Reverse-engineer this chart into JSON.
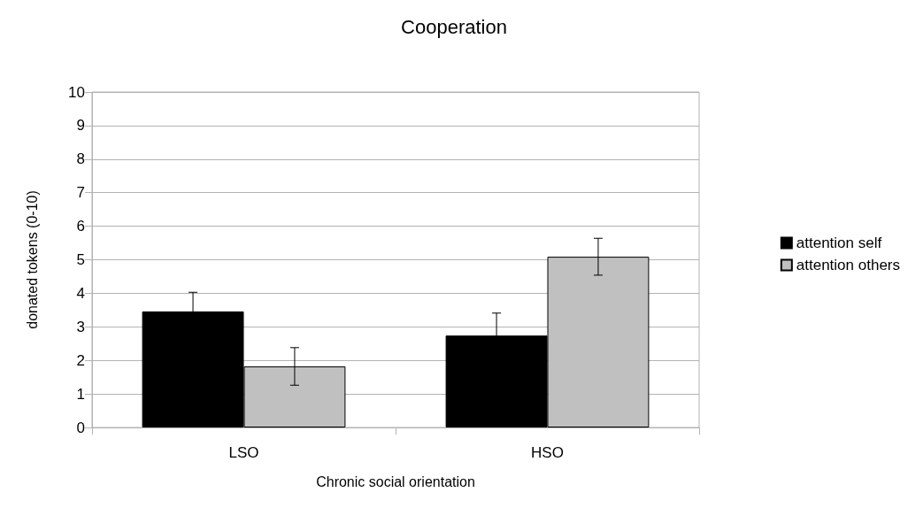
{
  "chart_data": {
    "type": "bar",
    "title": "Cooperation",
    "xlabel": "Chronic social orientation",
    "ylabel": "donated tokens (0-10)",
    "categories": [
      "LSO",
      "HSO"
    ],
    "series": [
      {
        "name": "attention self",
        "color": "#000000",
        "values": [
          3.46,
          2.74
        ],
        "errors": [
          0.57,
          0.67
        ]
      },
      {
        "name": "attention others",
        "color": "#c0c0c0",
        "values": [
          1.82,
          5.09
        ],
        "errors": [
          0.56,
          0.55
        ]
      }
    ],
    "ylim": [
      0,
      10
    ],
    "yticks": [
      0,
      1,
      2,
      3,
      4,
      5,
      6,
      7,
      8,
      9,
      10
    ],
    "grid": "y",
    "legend": "right"
  }
}
